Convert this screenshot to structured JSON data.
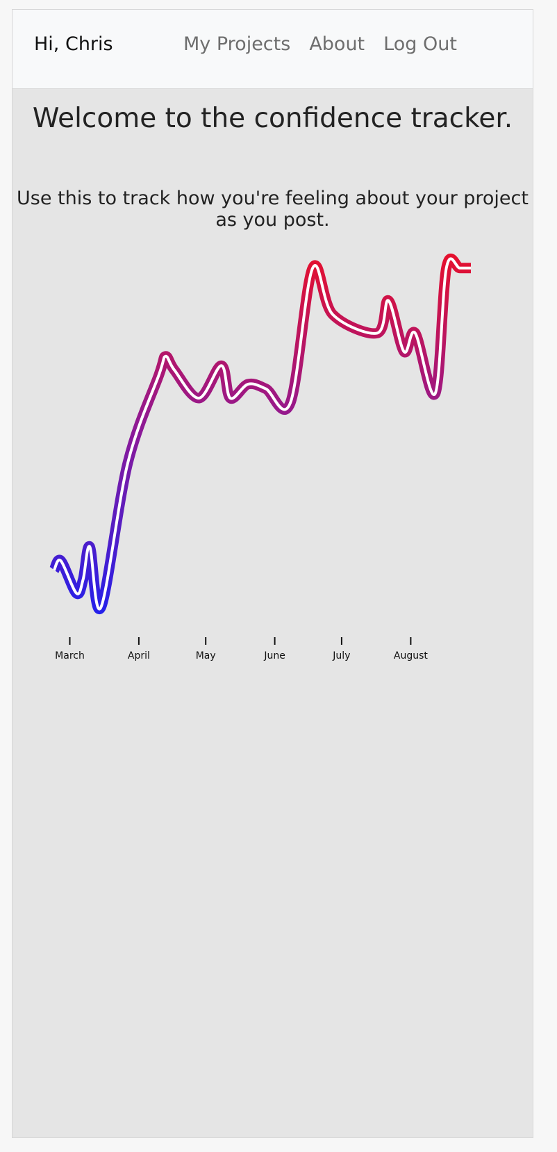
{
  "nav": {
    "greeting": "Hi, Chris",
    "links": [
      {
        "label": "My Projects"
      },
      {
        "label": "About"
      },
      {
        "label": "Log Out"
      }
    ]
  },
  "main": {
    "title": "Welcome to the confidence tracker.",
    "subtitle": "Use this to track how you're feeling about your project as you post."
  },
  "colors": {
    "navbar_bg": "#f8f9fa",
    "page_bg": "#e5e5e5",
    "gradient_start": "#2020ee",
    "gradient_mid": "#8a1a9a",
    "gradient_end": "#e8102a"
  },
  "chart_data": {
    "type": "line",
    "title": "",
    "xlabel": "",
    "ylabel": "",
    "grid": false,
    "legend": false,
    "x_tick_labels": [
      "March",
      "April",
      "May",
      "June",
      "July",
      "August"
    ],
    "x": [
      "Feb 22",
      "Feb 25",
      "Mar 4",
      "Mar 7",
      "Mar 10",
      "Mar 15",
      "Mar 27",
      "Apr 10",
      "Apr 13",
      "Apr 17",
      "Apr 28",
      "May 8",
      "May 12",
      "May 20",
      "May 28",
      "Jun 8",
      "Jun 18",
      "Jun 27",
      "Jul 17",
      "Jul 22",
      "Jul 29",
      "Aug 3",
      "Aug 12",
      "Aug 17",
      "Aug 23",
      "Aug 28"
    ],
    "values": [
      3.1,
      3.3,
      2.6,
      2.9,
      3.6,
      2.3,
      5.4,
      7.3,
      7.7,
      7.4,
      6.8,
      7.5,
      6.8,
      7.1,
      7.0,
      6.7,
      9.6,
      8.6,
      8.2,
      8.9,
      7.8,
      8.2,
      6.9,
      9.6,
      9.6,
      9.6
    ],
    "ylim": [
      2,
      10
    ]
  }
}
